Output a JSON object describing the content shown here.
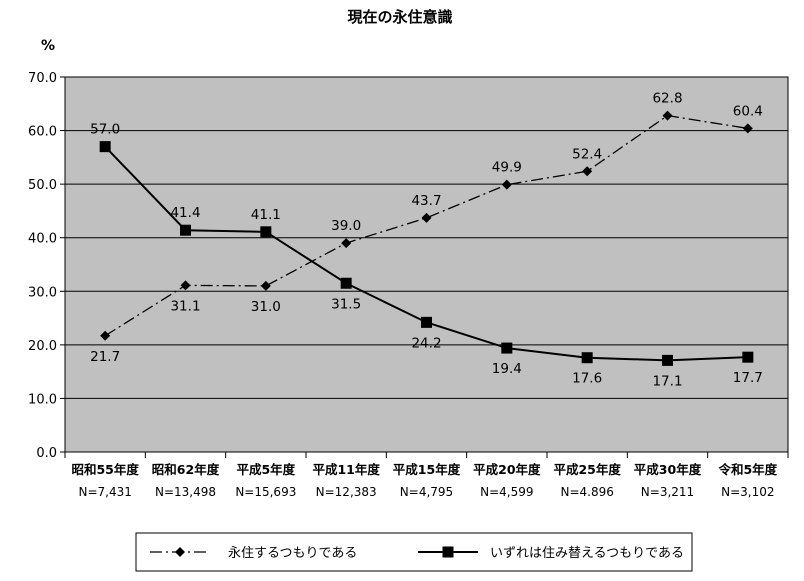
{
  "chart_data": {
    "type": "line",
    "title": "現在の永住意識",
    "ylabel": "%",
    "ylim": [
      0,
      70
    ],
    "yticks": [
      "0.0",
      "10.0",
      "20.0",
      "30.0",
      "40.0",
      "50.0",
      "60.0",
      "70.0"
    ],
    "grid": true,
    "legend_position": "bottom",
    "categories": [
      "昭和55年度",
      "昭和62年度",
      "平成5年度",
      "平成11年度",
      "平成15年度",
      "平成20年度",
      "平成25年度",
      "平成30年度",
      "令和5年度"
    ],
    "sample_sizes": [
      "N=7,431",
      "N=13,498",
      "N=15,693",
      "N=12,383",
      "N=4,795",
      "N=4,599",
      "N=4.896",
      "N=3,211",
      "N=3,102"
    ],
    "series": [
      {
        "name": "永住するつもりである",
        "marker": "diamond",
        "line_style": "dash-dot",
        "color": "#000000",
        "values": [
          21.7,
          31.1,
          31.0,
          39.0,
          43.7,
          49.9,
          52.4,
          62.8,
          60.4
        ],
        "labels": [
          "21.7",
          "31.1",
          "31.0",
          "39.0",
          "43.7",
          "49.9",
          "52.4",
          "62.8",
          "60.4"
        ]
      },
      {
        "name": "いずれは住み替えるつもりである",
        "marker": "square",
        "line_style": "solid",
        "color": "#000000",
        "values": [
          57.0,
          41.4,
          41.1,
          31.5,
          24.2,
          19.4,
          17.6,
          17.1,
          17.7
        ],
        "labels": [
          "57.0",
          "41.4",
          "41.1",
          "31.5",
          "24.2",
          "19.4",
          "17.6",
          "17.1",
          "17.7"
        ]
      }
    ]
  },
  "colors": {
    "plot_background": "#c0c0c0",
    "gridline": "#000000",
    "line": "#000000"
  }
}
